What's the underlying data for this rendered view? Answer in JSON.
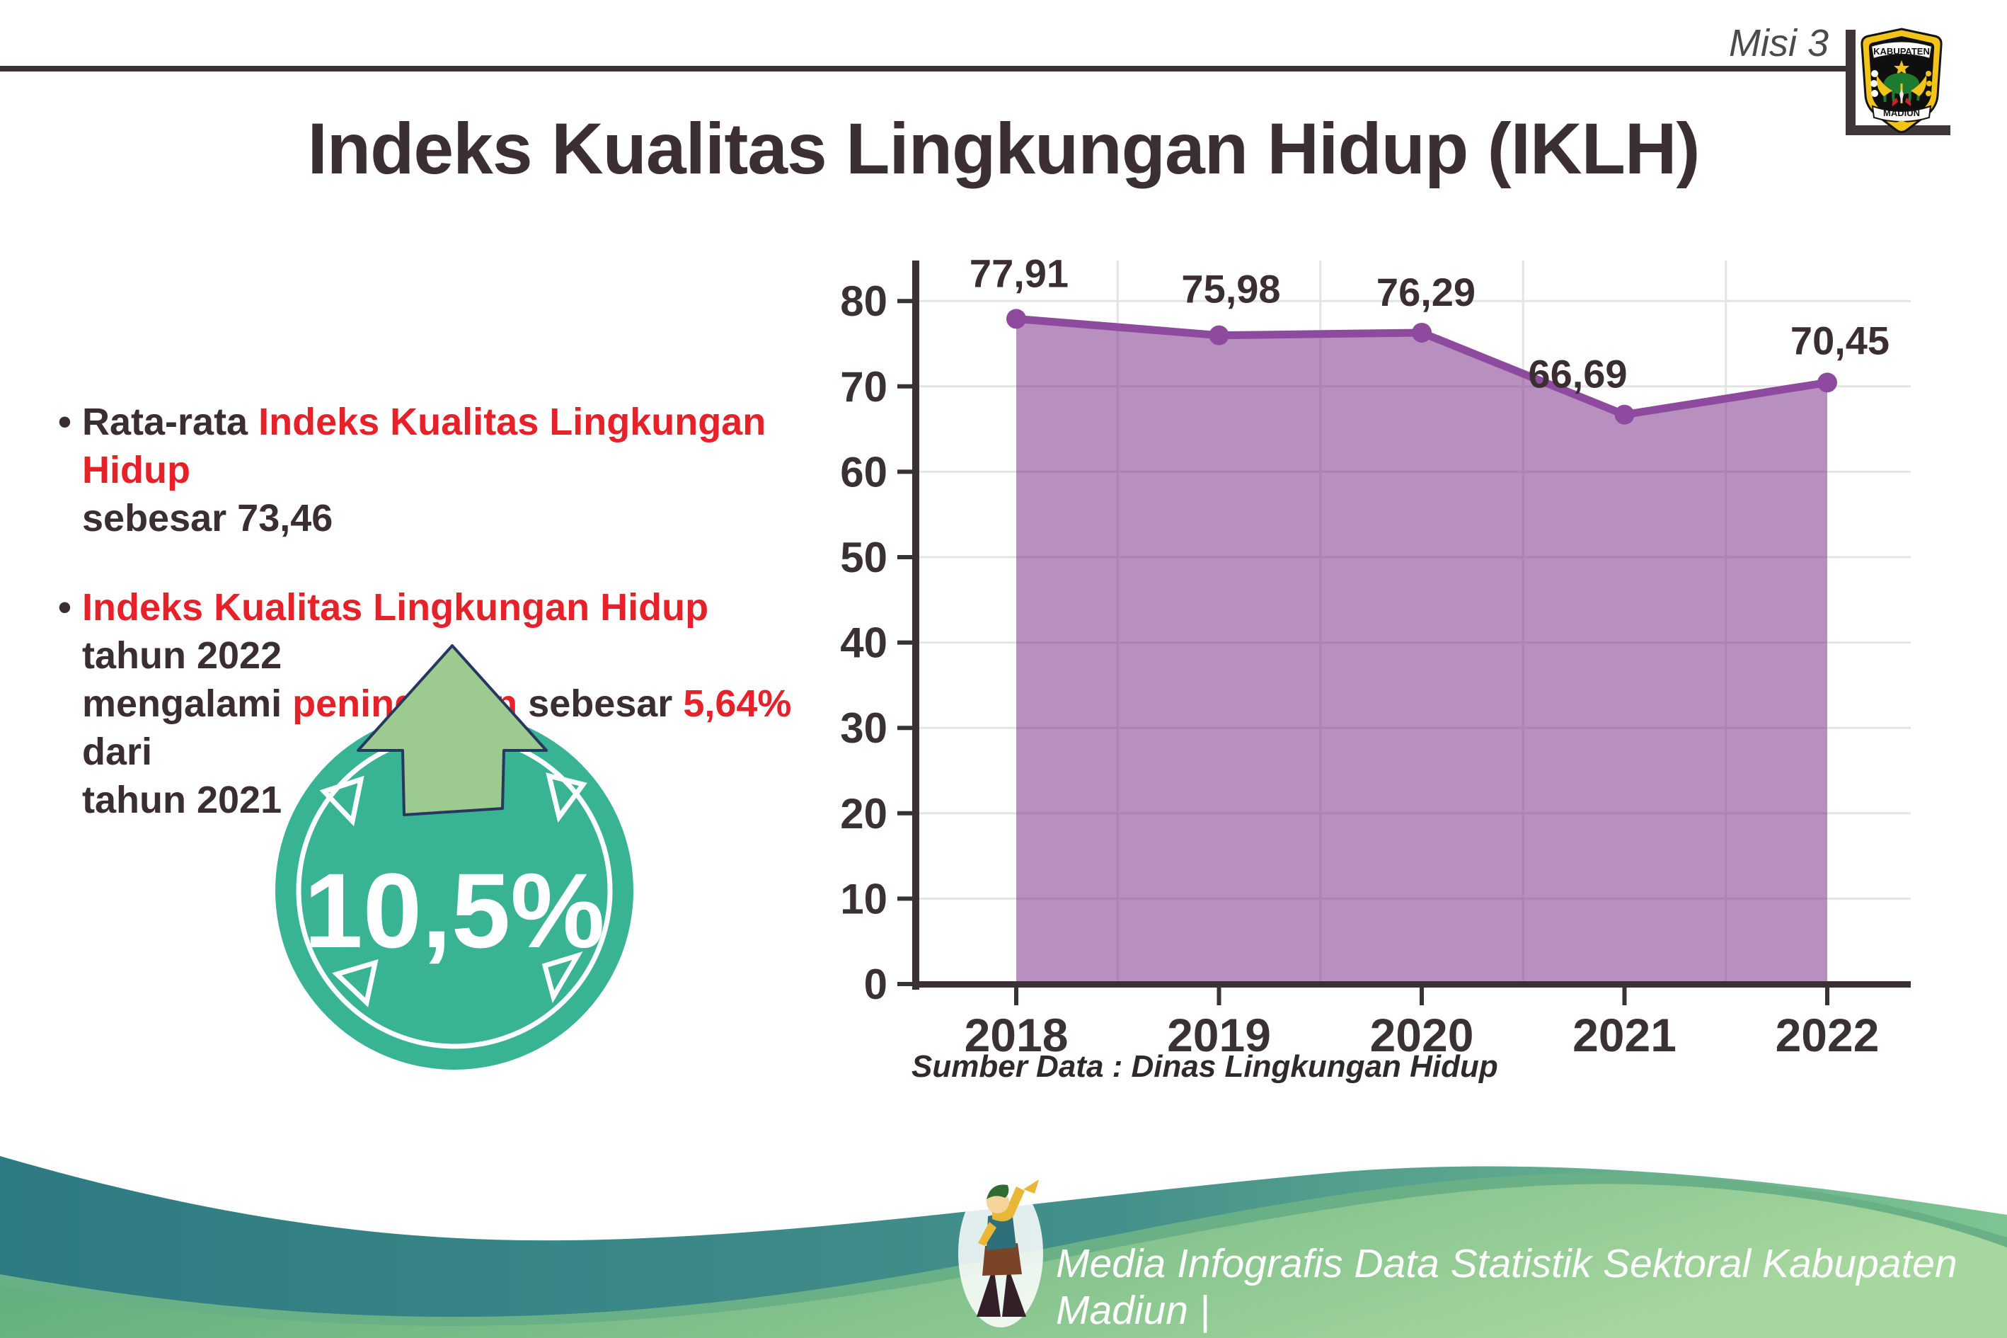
{
  "header": {
    "misi_label": "Misi 3",
    "title": "Indeks Kualitas Lingkungan Hidup (IKLH)"
  },
  "logo": {
    "top_text": "KABUPATEN",
    "bottom_text": "MADIUN"
  },
  "bullets": [
    {
      "lines": [
        [
          {
            "t": "Rata-rata ",
            "c": "dark"
          },
          {
            "t": "Indeks Kualitas Lingkungan Hidup",
            "c": "red"
          }
        ],
        [
          {
            "t": "sebesar 73,46",
            "c": "dark"
          }
        ]
      ]
    },
    {
      "lines": [
        [
          {
            "t": "Indeks Kualitas Lingkungan Hidup",
            "c": "red"
          },
          {
            "t": " tahun 2022",
            "c": "dark"
          }
        ],
        [
          {
            "t": "mengalami ",
            "c": "dark"
          },
          {
            "t": "peningkatan",
            "c": "red"
          },
          {
            "t": " sebesar ",
            "c": "dark"
          },
          {
            "t": "5,64%",
            "c": "red"
          },
          {
            "t": " dari",
            "c": "dark"
          }
        ],
        [
          {
            "t": "tahun 2021",
            "c": "dark"
          }
        ]
      ]
    }
  ],
  "badge": {
    "value": "10,5%"
  },
  "chart_data": {
    "type": "area",
    "categories": [
      "2018",
      "2019",
      "2020",
      "2021",
      "2022"
    ],
    "values": [
      77.91,
      75.98,
      76.29,
      66.69,
      70.45
    ],
    "value_labels": [
      "77,91",
      "75,98",
      "76,29",
      "66,69",
      "70,45"
    ],
    "title": "",
    "xlabel": "",
    "ylabel": "",
    "ylim": [
      0,
      80
    ],
    "ytick_step": 10,
    "grid": true,
    "legend_position": "none"
  },
  "source_text": "Sumber Data : Dinas Lingkungan Hidup",
  "footer": {
    "credit": "Media Infografis Data Statistik Sektoral Kabupaten Madiun |"
  },
  "colors": {
    "accent_red": "#e6212a",
    "text_dark": "#3a2e30",
    "axis_dark": "#3a3134",
    "grid_gray": "#e4e4e4",
    "purple_line": "#8e4a9e",
    "purple_fill": "rgba(125,52,141,0.55)",
    "badge_teal": "#38b394",
    "arrow_green": "#9dca8f",
    "arrow_outline": "#27375f",
    "wave_teal_dark": "#2d7b82",
    "wave_teal_light": "#7ec493",
    "wave_green_dark": "#58a87a",
    "wave_green_light": "#a6d79e",
    "logo_yellow": "#f2c41a",
    "logo_green": "#1e7a2e"
  }
}
